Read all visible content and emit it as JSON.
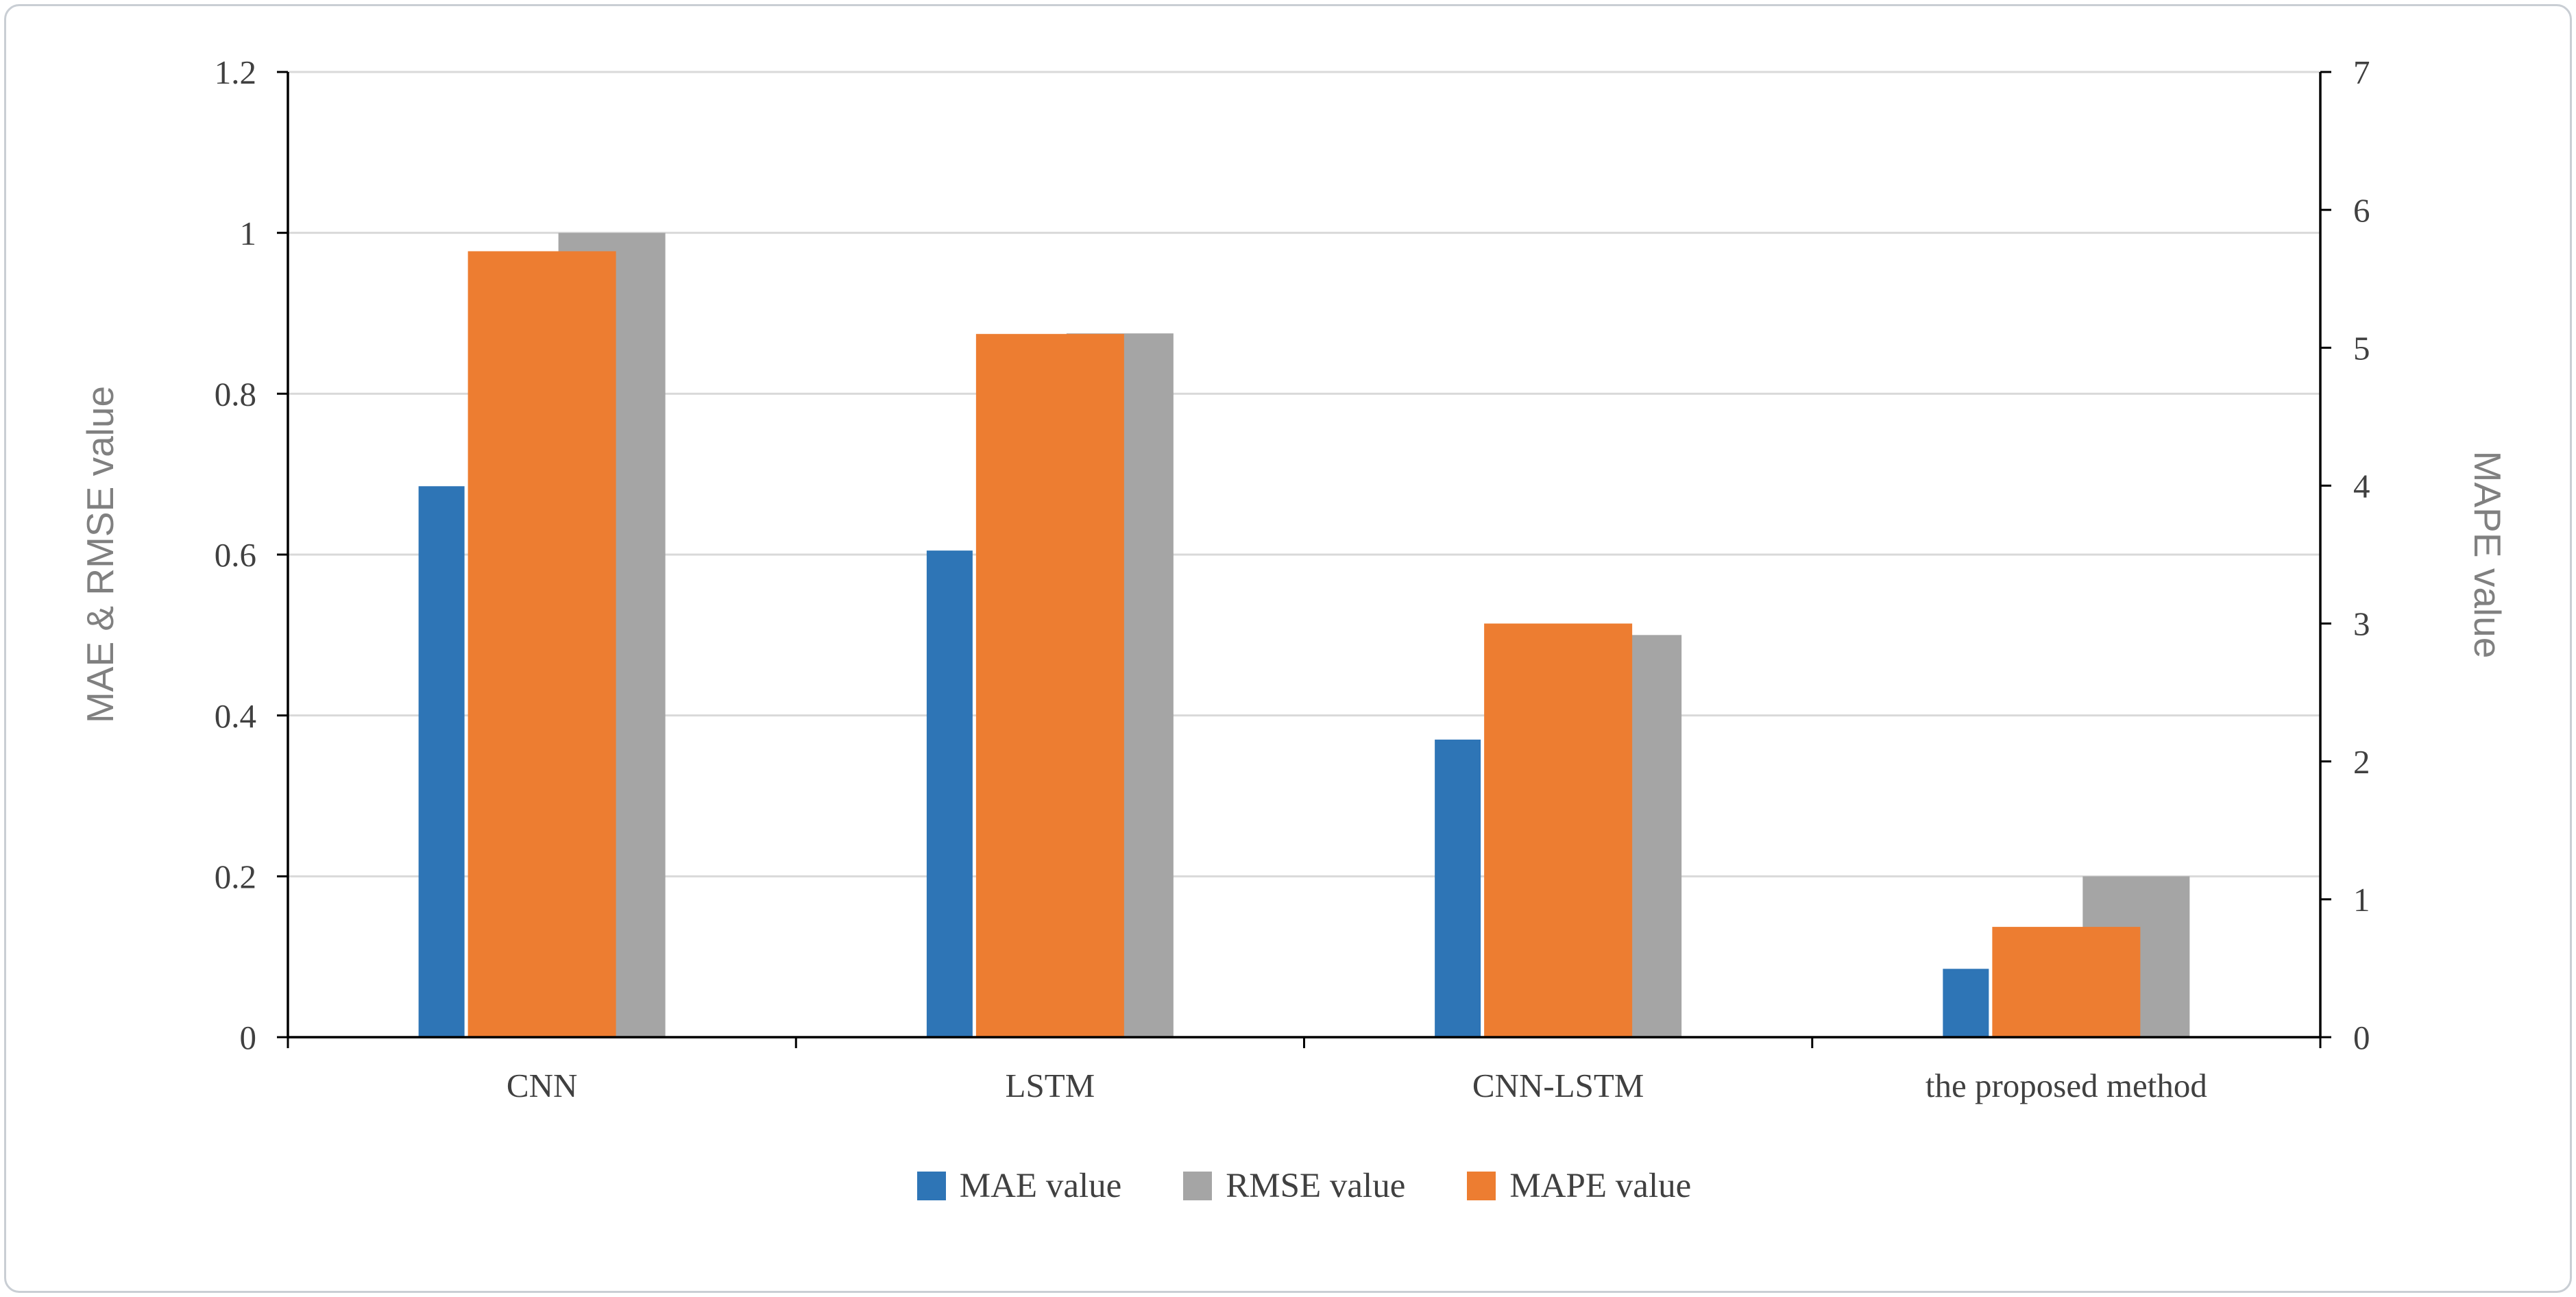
{
  "chart_data": {
    "type": "bar",
    "title": "",
    "categories": [
      "CNN",
      "LSTM",
      "CNN-LSTM",
      "the proposed method"
    ],
    "series": [
      {
        "name": "MAE value",
        "axis": "left",
        "color": "#2E75B6",
        "values": [
          0.685,
          0.605,
          0.37,
          0.085
        ]
      },
      {
        "name": "RMSE value",
        "axis": "left",
        "color": "#A5A5A5",
        "values": [
          1.0,
          0.875,
          0.5,
          0.2
        ]
      },
      {
        "name": "MAPE value",
        "axis": "right",
        "color": "#ED7D31",
        "values": [
          5.7,
          5.1,
          3.0,
          0.8
        ]
      }
    ],
    "left_axis": {
      "title": "MAE & RMSE value",
      "min": 0,
      "max": 1.2,
      "step": 0.2,
      "ticks": [
        "0",
        "0.2",
        "0.4",
        "0.6",
        "0.8",
        "1",
        "1.2"
      ]
    },
    "right_axis": {
      "title": "MAPE value",
      "min": 0,
      "max": 7,
      "step": 1,
      "ticks": [
        "0",
        "1",
        "2",
        "3",
        "4",
        "5",
        "6",
        "7"
      ]
    },
    "legend": [
      {
        "label": "MAE value",
        "color": "#2E75B6"
      },
      {
        "label": "RMSE value",
        "color": "#A5A5A5"
      },
      {
        "label": "MAPE value",
        "color": "#ED7D31"
      }
    ],
    "legend_position": "bottom",
    "grid": true,
    "grid_color": "#D9D9D9"
  }
}
